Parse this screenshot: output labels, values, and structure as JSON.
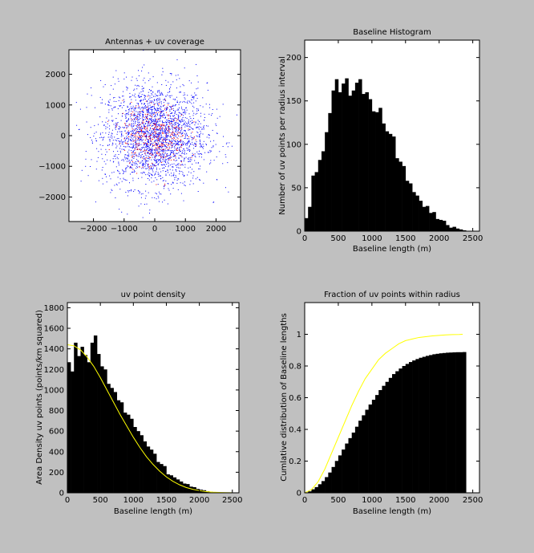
{
  "colors": {
    "figure_bg": "#c0c0c0",
    "axes_bg": "#ffffff",
    "bars": "#000000",
    "fit_line": "#ffff00",
    "antenna_points": "#0000ff",
    "uv_points": "#ff0000"
  },
  "chart_data": [
    {
      "type": "scatter",
      "title": "Antennas + uv coverage",
      "xlabel": "",
      "ylabel": "",
      "xlim": [
        -2800,
        2800
      ],
      "ylim": [
        -2800,
        2800
      ],
      "xticks": [
        -2000,
        -1000,
        0,
        1000,
        2000
      ],
      "yticks": [
        -2000,
        -1000,
        0,
        1000,
        2000
      ],
      "xtick_labels": [
        "−2000",
        "−1000",
        "0",
        "1000",
        "2000"
      ],
      "ytick_labels": [
        "−2000",
        "−1000",
        "0",
        "1000",
        "2000"
      ],
      "point_count_blue": 2400,
      "point_count_red": 360,
      "sigma_blue": 850,
      "sigma_red": 520,
      "grid": false
    },
    {
      "type": "bar",
      "title": "Baseline Histogram",
      "xlabel": "Baseline length (m)",
      "ylabel": "Number of uv points  per radius interval",
      "xlim": [
        0,
        2600
      ],
      "ylim": [
        0,
        220
      ],
      "xticks": [
        0,
        500,
        1000,
        1500,
        2000,
        2500
      ],
      "yticks": [
        0,
        50,
        100,
        150,
        200
      ],
      "bin_width": 50,
      "x": [
        0,
        50,
        100,
        150,
        200,
        250,
        300,
        350,
        400,
        450,
        500,
        550,
        600,
        650,
        700,
        750,
        800,
        850,
        900,
        950,
        1000,
        1050,
        1100,
        1150,
        1200,
        1250,
        1300,
        1350,
        1400,
        1450,
        1500,
        1550,
        1600,
        1650,
        1700,
        1750,
        1800,
        1850,
        1900,
        1950,
        2000,
        2050,
        2100,
        2150,
        2200,
        2250,
        2300,
        2350
      ],
      "values": [
        15,
        28,
        64,
        68,
        82,
        92,
        114,
        136,
        162,
        175,
        160,
        170,
        176,
        156,
        162,
        171,
        175,
        158,
        160,
        152,
        138,
        137,
        142,
        124,
        115,
        112,
        109,
        84,
        80,
        75,
        58,
        55,
        45,
        41,
        35,
        28,
        29,
        21,
        22,
        14,
        13,
        12,
        7,
        4,
        5,
        3,
        2,
        1
      ],
      "grid": false
    },
    {
      "type": "bar",
      "title": "uv point density",
      "xlabel": "Baseline length (m)",
      "ylabel": "Area Density uv points (points/km squared)",
      "xlim": [
        0,
        2600
      ],
      "ylim": [
        0,
        1850
      ],
      "xticks": [
        0,
        500,
        1000,
        1500,
        2000,
        2500
      ],
      "yticks": [
        0,
        200,
        400,
        600,
        800,
        1000,
        1200,
        1400,
        1600,
        1800
      ],
      "bin_width": 50,
      "x": [
        0,
        50,
        100,
        150,
        200,
        250,
        300,
        350,
        400,
        450,
        500,
        550,
        600,
        650,
        700,
        750,
        800,
        850,
        900,
        950,
        1000,
        1050,
        1100,
        1150,
        1200,
        1250,
        1300,
        1350,
        1400,
        1450,
        1500,
        1550,
        1600,
        1650,
        1700,
        1750,
        1800,
        1850,
        1900,
        1950,
        2000,
        2050,
        2100,
        2150,
        2200,
        2250,
        2300,
        2350
      ],
      "values": [
        1270,
        1180,
        1460,
        1330,
        1420,
        1340,
        1270,
        1460,
        1530,
        1350,
        1230,
        1200,
        1060,
        1020,
        980,
        900,
        880,
        780,
        760,
        720,
        640,
        600,
        560,
        500,
        450,
        420,
        380,
        300,
        280,
        260,
        180,
        170,
        150,
        130,
        110,
        90,
        85,
        60,
        55,
        38,
        30,
        25,
        15,
        10,
        8,
        5,
        3,
        2
      ],
      "fit_x": [
        0,
        100,
        200,
        300,
        400,
        500,
        600,
        700,
        800,
        900,
        1000,
        1100,
        1200,
        1300,
        1400,
        1500,
        1600,
        1700,
        1800,
        1900,
        2000,
        2100,
        2200,
        2300,
        2400,
        2500
      ],
      "fit_y": [
        1440,
        1430,
        1390,
        1320,
        1230,
        1120,
        1000,
        880,
        760,
        650,
        540,
        440,
        350,
        275,
        210,
        155,
        112,
        78,
        52,
        34,
        21,
        12,
        7,
        4,
        2,
        1
      ],
      "grid": false
    },
    {
      "type": "bar",
      "title": "Fraction of uv points within radius",
      "xlabel": "Baseline length (m)",
      "ylabel": "Cumlative distribution of Baseline lengths",
      "xlim": [
        0,
        2600
      ],
      "ylim": [
        0,
        1.2
      ],
      "xticks": [
        0,
        500,
        1000,
        1500,
        2000,
        2500
      ],
      "yticks": [
        0,
        0.2,
        0.4,
        0.6,
        0.8,
        1
      ],
      "bin_width": 50,
      "x": [
        0,
        50,
        100,
        150,
        200,
        250,
        300,
        350,
        400,
        450,
        500,
        550,
        600,
        650,
        700,
        750,
        800,
        850,
        900,
        950,
        1000,
        1050,
        1100,
        1150,
        1200,
        1250,
        1300,
        1350,
        1400,
        1450,
        1500,
        1550,
        1600,
        1650,
        1700,
        1750,
        1800,
        1850,
        1900,
        1950,
        2000,
        2050,
        2100,
        2150,
        2200,
        2250,
        2300,
        2350
      ],
      "values": [
        0.003,
        0.009,
        0.022,
        0.036,
        0.054,
        0.074,
        0.099,
        0.128,
        0.163,
        0.201,
        0.236,
        0.273,
        0.311,
        0.345,
        0.38,
        0.417,
        0.455,
        0.489,
        0.524,
        0.557,
        0.587,
        0.617,
        0.648,
        0.675,
        0.7,
        0.725,
        0.749,
        0.767,
        0.784,
        0.8,
        0.813,
        0.825,
        0.835,
        0.844,
        0.852,
        0.858,
        0.864,
        0.869,
        0.874,
        0.877,
        0.88,
        0.882,
        0.884,
        0.885,
        0.886,
        0.887,
        0.887,
        0.888
      ],
      "fit_x": [
        0,
        100,
        200,
        300,
        400,
        500,
        600,
        700,
        800,
        900,
        1000,
        1100,
        1200,
        1300,
        1400,
        1500,
        1600,
        1700,
        1800,
        1900,
        2000,
        2100,
        2200,
        2300,
        2350
      ],
      "fit_y": [
        0,
        0.02,
        0.07,
        0.15,
        0.25,
        0.35,
        0.45,
        0.55,
        0.64,
        0.72,
        0.78,
        0.84,
        0.88,
        0.91,
        0.94,
        0.96,
        0.97,
        0.98,
        0.985,
        0.99,
        0.993,
        0.996,
        0.998,
        0.999,
        1.0
      ],
      "grid": false
    }
  ]
}
